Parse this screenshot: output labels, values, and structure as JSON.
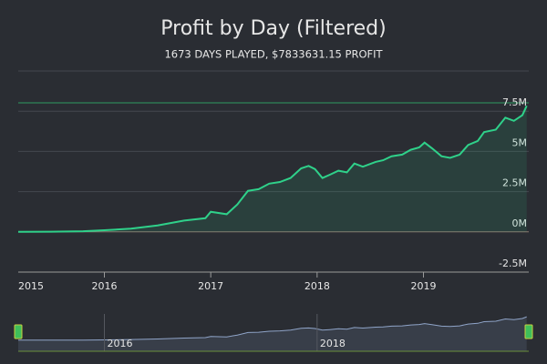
{
  "chart_data": {
    "type": "area",
    "title": "Profit by Day (Filtered)",
    "subtitle": "1673 DAYS PLAYED, $7833631.15 PROFIT",
    "color": "#2fd18a",
    "grid": true,
    "x": [
      2015.19,
      2015.5,
      2015.8,
      2016.0,
      2016.25,
      2016.5,
      2016.75,
      2016.95,
      2017.0,
      2017.15,
      2017.25,
      2017.35,
      2017.45,
      2017.55,
      2017.65,
      2017.75,
      2017.85,
      2017.92,
      2017.98,
      2018.05,
      2018.12,
      2018.2,
      2018.28,
      2018.35,
      2018.43,
      2018.55,
      2018.62,
      2018.7,
      2018.8,
      2018.88,
      2018.96,
      2019.01,
      2019.08,
      2019.17,
      2019.25,
      2019.34,
      2019.42,
      2019.51,
      2019.57,
      2019.68,
      2019.77,
      2019.85,
      2019.93,
      2019.97
    ],
    "values": [
      0,
      10000,
      40000,
      100000,
      200000,
      400000,
      700000,
      850000,
      1250000,
      1100000,
      1700000,
      2550000,
      2650000,
      3000000,
      3100000,
      3350000,
      3950000,
      4100000,
      3900000,
      3350000,
      3550000,
      3800000,
      3700000,
      4250000,
      4050000,
      4350000,
      4450000,
      4700000,
      4800000,
      5100000,
      5250000,
      5550000,
      5200000,
      4700000,
      4600000,
      4800000,
      5400000,
      5650000,
      6200000,
      6350000,
      7100000,
      6900000,
      7250000,
      7833631.15
    ],
    "xlim": [
      2015.19,
      2019.99
    ],
    "xticks": [
      2015,
      2016,
      2017,
      2018,
      2019
    ],
    "ylim": [
      -2500000,
      10000000
    ],
    "yticks": [
      {
        "value": -2500000,
        "label": "-2.5M"
      },
      {
        "value": 0,
        "label": "0M"
      },
      {
        "value": 2500000,
        "label": "2.5M"
      },
      {
        "value": 5000000,
        "label": "5M"
      },
      {
        "value": 7500000,
        "label": "7.5M"
      },
      10000000
    ],
    "navigator_xticks": [
      2016,
      2018
    ]
  }
}
